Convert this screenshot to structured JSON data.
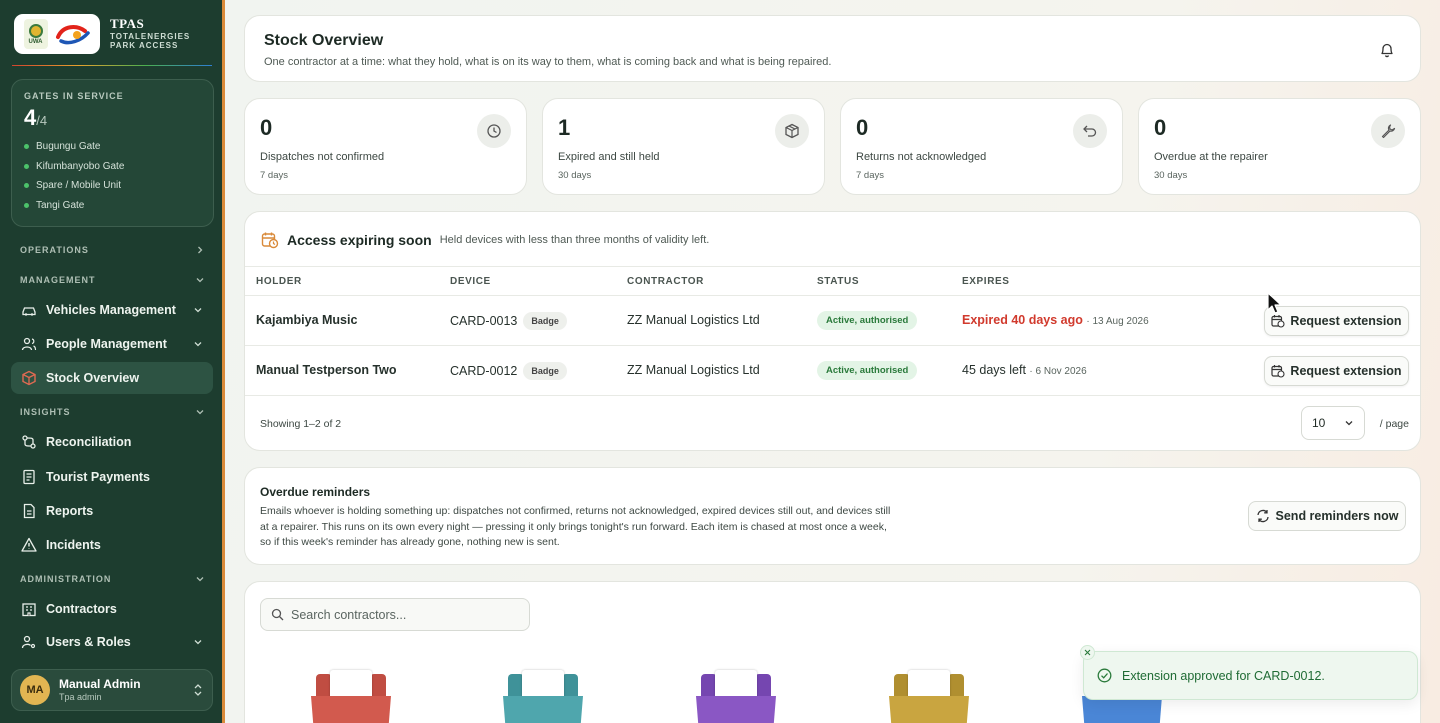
{
  "brand": {
    "title": "TPAS",
    "subtitle_line1": "TOTALENERGIES",
    "subtitle_line2": "PARK ACCESS",
    "uwa_logo_text": "UWA"
  },
  "gates": {
    "label": "GATES IN SERVICE",
    "count": "4",
    "total": "/4",
    "items": [
      "Bugungu Gate",
      "Kifumbanyobo Gate",
      "Spare / Mobile Unit",
      "Tangi Gate"
    ]
  },
  "sidebar": {
    "operations": "OPERATIONS",
    "management": "MANAGEMENT",
    "vehicles": "Vehicles Management",
    "people": "People Management",
    "stock": "Stock Overview",
    "insights": "INSIGHTS",
    "reconciliation": "Reconciliation",
    "tourist_payments": "Tourist Payments",
    "reports": "Reports",
    "incidents": "Incidents",
    "administration": "ADMINISTRATION",
    "contractors": "Contractors",
    "users_roles": "Users & Roles"
  },
  "user": {
    "initials": "MA",
    "name": "Manual Admin",
    "role": "Tpa admin"
  },
  "header": {
    "title": "Stock Overview",
    "description": "One contractor at a time: what they hold, what is on its way to them, what is coming back and what is being repaired."
  },
  "stats": [
    {
      "value": "0",
      "label": "Dispatches not confirmed",
      "period": "7 days",
      "icon": "clock-icon"
    },
    {
      "value": "1",
      "label": "Expired and still held",
      "period": "30 days",
      "icon": "package-icon"
    },
    {
      "value": "0",
      "label": "Returns not acknowledged",
      "period": "7 days",
      "icon": "undo-icon"
    },
    {
      "value": "0",
      "label": "Overdue at the repairer",
      "period": "30 days",
      "icon": "wrench-icon"
    }
  ],
  "expiring": {
    "title": "Access expiring soon",
    "description": "Held devices with less than three months of validity left.",
    "columns": [
      "HOLDER",
      "DEVICE",
      "CONTRACTOR",
      "STATUS",
      "EXPIRES"
    ],
    "rows": [
      {
        "holder": "Kajambiya Music",
        "device": "CARD-0013",
        "device_type": "Badge",
        "contractor": "ZZ Manual Logistics Ltd",
        "status": "Active, authorised",
        "expires": "Expired 40 days ago",
        "expires_date": "· 13 Aug 2026",
        "action": "Request extension"
      },
      {
        "holder": "Manual Testperson Two",
        "device": "CARD-0012",
        "device_type": "Badge",
        "contractor": "ZZ Manual Logistics Ltd",
        "status": "Active, authorised",
        "expires": "45 days left",
        "expires_date": "· 6 Nov 2026",
        "action": "Request extension"
      }
    ],
    "showing": "Showing 1–2 of 2",
    "page_size": "10",
    "per_page": "/ page"
  },
  "reminders": {
    "title": "Overdue reminders",
    "text": "Emails whoever is holding something up: dispatches not confirmed, returns not acknowledged, expired devices still out, and devices still at a repairer. This runs on its own every night — pressing it only brings tonight's run forward. Each item is chased at most once a week, so if this week's reminder has already gone, nothing new is sent.",
    "button": "Send reminders now"
  },
  "contractors": {
    "search_placeholder": "Search contractors..."
  },
  "folder_colors": [
    "#d25a4e",
    "#4fa6ad",
    "#8a57c4",
    "#c9a540",
    "#4a86d6"
  ],
  "toast": {
    "message": "Extension approved for CARD-0012."
  },
  "colors": {
    "sidebar": "#1d3d2f",
    "active_nav": "#2d5343",
    "danger": "#d13a2d",
    "success": "#2a7a3b"
  }
}
